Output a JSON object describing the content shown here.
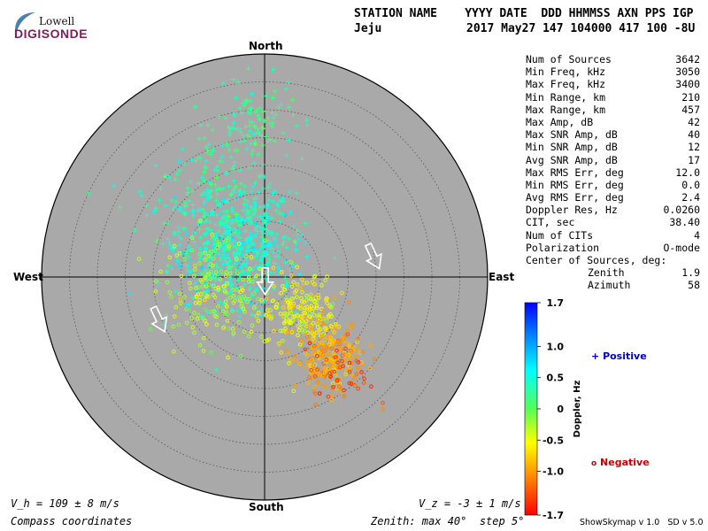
{
  "logo": {
    "line1": "Lowell",
    "line2": "DIGISONDE"
  },
  "header": {
    "line1": "STATION NAME    YYYY DATE  DDD HHMMSS AXN PPS IGP",
    "line2_station": "Jeju",
    "line2_values": "2017 May27 147 104000 417 100 -8U"
  },
  "stats": [
    {
      "label": "Num of Sources",
      "value": "3642"
    },
    {
      "label": "Min Freq, kHz",
      "value": "3050"
    },
    {
      "label": "Max Freq, kHz",
      "value": "3400"
    },
    {
      "label": "Min Range, km",
      "value": "210"
    },
    {
      "label": "Max Range, km",
      "value": "457"
    },
    {
      "label": "Max Amp, dB",
      "value": "42"
    },
    {
      "label": "Max SNR Amp, dB",
      "value": "40"
    },
    {
      "label": "Min SNR Amp, dB",
      "value": "12"
    },
    {
      "label": "Avg SNR Amp, dB",
      "value": "17"
    },
    {
      "label": "Max RMS Err, deg",
      "value": "12.0"
    },
    {
      "label": "Min RMS Err, deg",
      "value": "0.0"
    },
    {
      "label": "Avg RMS Err, deg",
      "value": "2.4"
    },
    {
      "label": "Doppler Res, Hz",
      "value": "0.0260"
    },
    {
      "label": "CIT, sec",
      "value": "38.40"
    },
    {
      "label": "Num of CITs",
      "value": "4"
    },
    {
      "label": "Polarization",
      "value": "O-mode"
    }
  ],
  "center": {
    "title": "Center of Sources, deg:",
    "zenith_label": "Zenith",
    "zenith_value": "1.9",
    "azimuth_label": "Azimuth",
    "azimuth_value": "58"
  },
  "directions": {
    "north": "North",
    "south": "South",
    "east": "East",
    "west": "West"
  },
  "bottom": {
    "vh": "V_h = 109 ± 8 m/s",
    "vz": "V_z = -3 ± 1 m/s",
    "coords": "Compass coordinates",
    "zenith_info": "Zenith: max 40°  step 5°",
    "version": "ShowSkymap v 1.0   SD v 5.0"
  },
  "legend": {
    "positive": "Positive",
    "negative": "Negative",
    "positive_color": "#0000cc",
    "negative_color": "#cc0000"
  },
  "colors": {
    "disk": "#a9a9a9",
    "background": "#ffffff"
  },
  "chart_data": {
    "type": "scatter",
    "coordinate_system": "polar-zenith-azimuth",
    "zenith_max_deg": 40,
    "zenith_step_deg": 5,
    "colorbar": {
      "label": "Doppler, Hz",
      "min": -1.7,
      "max": 1.7,
      "ticks": [
        "1.7",
        "1.0",
        "0.5",
        "0",
        "-0.5",
        "-1.0",
        "-1.7"
      ],
      "tick_values": [
        1.7,
        1.0,
        0.5,
        0,
        -0.5,
        -1.0,
        -1.7
      ]
    },
    "clusters": [
      {
        "east_deg": -5.5,
        "north_deg": 5.5,
        "spread_deg": 5.5,
        "count": 650,
        "doppler": 0.45,
        "marker": "+"
      },
      {
        "east_deg": -9,
        "north_deg": 14,
        "spread_deg": 6,
        "count": 170,
        "doppler": 0.3,
        "marker": "+"
      },
      {
        "east_deg": -1.5,
        "north_deg": 27,
        "spread_deg": 3.5,
        "count": 110,
        "doppler": 0.2,
        "marker": "+"
      },
      {
        "east_deg": -9,
        "north_deg": -2.5,
        "spread_deg": 4.5,
        "count": 180,
        "doppler": -0.3,
        "marker": "o"
      },
      {
        "east_deg": 6.5,
        "north_deg": -6,
        "spread_deg": 3.5,
        "count": 200,
        "doppler": -0.5,
        "marker": "o"
      },
      {
        "east_deg": 11.5,
        "north_deg": -14.5,
        "spread_deg": 3,
        "count": 240,
        "doppler": -0.95,
        "marker": "o"
      },
      {
        "east_deg": 14,
        "north_deg": -17.5,
        "spread_deg": 3,
        "count": 45,
        "doppler": -1.4,
        "marker": "o"
      }
    ],
    "vectors": [
      {
        "east_deg": 19.5,
        "north_deg": 3.8,
        "direction": "south-east"
      },
      {
        "east_deg": 0.1,
        "north_deg": -0.6,
        "direction": "south"
      },
      {
        "east_deg": -19,
        "north_deg": -7.5,
        "direction": "south-east"
      }
    ]
  }
}
